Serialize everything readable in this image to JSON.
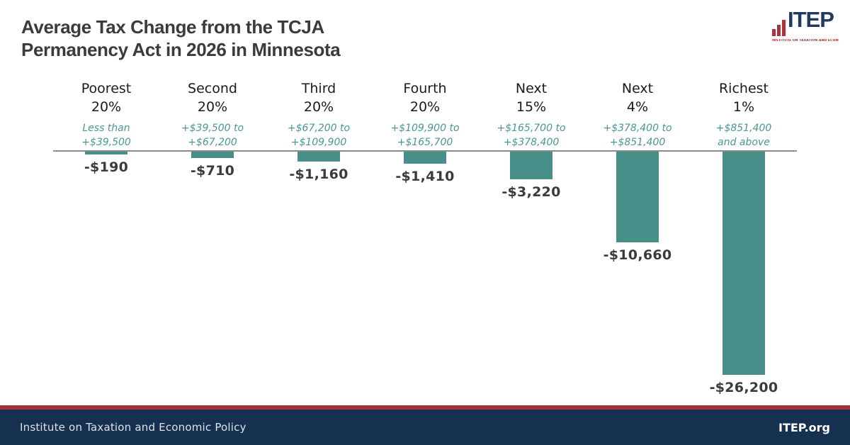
{
  "header": {
    "title_line1": "Average Tax Change from the TCJA",
    "title_line2": "Permanency Act in 2026 in Minnesota",
    "logo": {
      "text": "ITEP",
      "subtext": "INSTITUTE ON TAXATION AND ECONOMIC POLICY",
      "icon": "bar-chart-icon",
      "navy_color": "#1E3A63",
      "red_color": "#A93439"
    }
  },
  "chart_data": {
    "type": "bar",
    "title": "Average Tax Change from the TCJA Permanency Act in 2026 in Minnesota",
    "categories": [
      "Poorest 20%",
      "Second 20%",
      "Third 20%",
      "Fourth 20%",
      "Next 15%",
      "Next 4%",
      "Richest 1%"
    ],
    "values": [
      -190,
      -710,
      -1160,
      -1410,
      -3220,
      -10660,
      -26200
    ],
    "value_labels": [
      "-$190",
      "-$710",
      "-$1,160",
      "-$1,410",
      "-$3,220",
      "-$10,660",
      "-$26,200"
    ],
    "income_ranges": [
      "Less than +$39,500",
      "+$39,500 to +$67,200",
      "+$67,200 to +$109,900",
      "+$109,900 to +$165,700",
      "+$165,700 to +$378,400",
      "+$378,400 to +$851,400",
      "+$851,400 and above"
    ],
    "xlabel": "",
    "ylabel": "",
    "ylim": [
      -26200,
      0
    ],
    "grid": false,
    "legend": false,
    "bar_color": "#488F8A",
    "range_text_color": "#4A9793",
    "baseline_color": "#8C8C8C",
    "columns": [
      {
        "name": "Poorest",
        "percent": "20%",
        "range_line1": "Less than",
        "range_line2": "+$39,500",
        "value": -190,
        "label": "-$190"
      },
      {
        "name": "Second",
        "percent": "20%",
        "range_line1": "+$39,500 to",
        "range_line2": "+$67,200",
        "value": -710,
        "label": "-$710"
      },
      {
        "name": "Third",
        "percent": "20%",
        "range_line1": "+$67,200 to",
        "range_line2": "+$109,900",
        "value": -1160,
        "label": "-$1,160"
      },
      {
        "name": "Fourth",
        "percent": "20%",
        "range_line1": "+$109,900 to",
        "range_line2": "+$165,700",
        "value": -1410,
        "label": "-$1,410"
      },
      {
        "name": "Next",
        "percent": "15%",
        "range_line1": "+$165,700 to",
        "range_line2": "+$378,400",
        "value": -3220,
        "label": "-$3,220"
      },
      {
        "name": "Next",
        "percent": "4%",
        "range_line1": "+$378,400 to",
        "range_line2": "+$851,400",
        "value": -10660,
        "label": "-$10,660"
      },
      {
        "name": "Richest",
        "percent": "1%",
        "range_line1": "+$851,400",
        "range_line2": "and above",
        "value": -26200,
        "label": "-$26,200"
      }
    ]
  },
  "footer": {
    "left": "Institute on Taxation and Economic Policy",
    "right": "ITEP.org",
    "bg_color": "#16304F",
    "accent_color": "#9E3339"
  }
}
